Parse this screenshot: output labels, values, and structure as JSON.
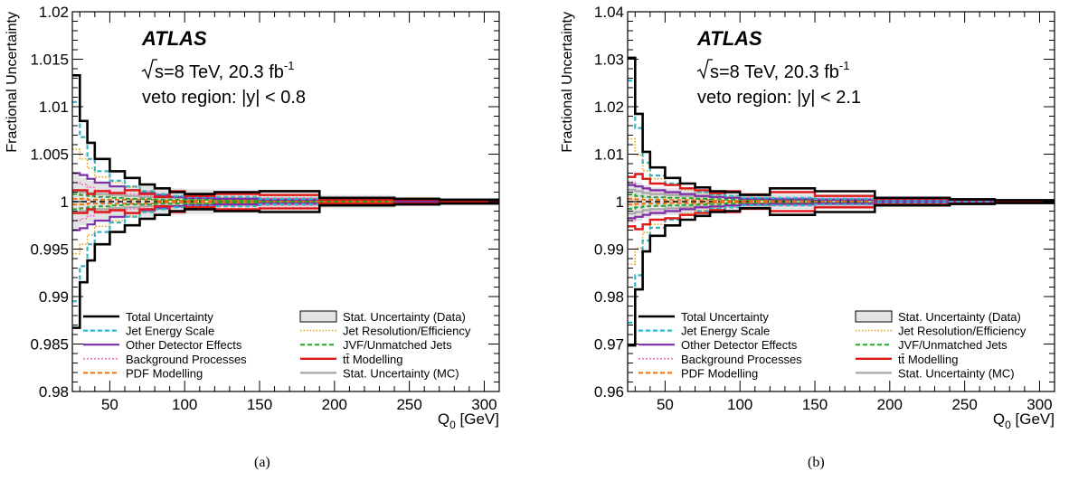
{
  "panels": [
    {
      "caption": "(a)",
      "title": "ATLAS",
      "energy_line_prefix": "s=8 TeV, 20.3 fb",
      "energy_line_sup": "-1",
      "veto_text": "veto region: |y| < 0.8",
      "ylabel": "Fractional Uncertainty",
      "xlabel_prefix": "Q",
      "xlabel_sub": "0",
      "xlabel_suffix": " [GeV]",
      "yticks": [
        "0.98",
        "0.985",
        "0.99",
        "0.995",
        "1",
        "1.005",
        "1.01",
        "1.015",
        "1.02"
      ],
      "xticks": [
        "50",
        "100",
        "150",
        "200",
        "250",
        "300"
      ]
    },
    {
      "caption": "(b)",
      "title": "ATLAS",
      "energy_line_prefix": "s=8 TeV, 20.3 fb",
      "energy_line_sup": "-1",
      "veto_text": "veto region: |y| < 2.1",
      "ylabel": "Fractional Uncertainty",
      "xlabel_prefix": "Q",
      "xlabel_sub": "0",
      "xlabel_suffix": " [GeV]",
      "yticks": [
        "0.96",
        "0.97",
        "0.98",
        "0.99",
        "1",
        "1.01",
        "1.02",
        "1.03",
        "1.04"
      ],
      "xticks": [
        "50",
        "100",
        "150",
        "200",
        "250",
        "300"
      ]
    }
  ],
  "legend": [
    {
      "label": "Total Uncertainty",
      "color": "#000000",
      "style": "solid"
    },
    {
      "label": "Stat. Uncertainty (Data)",
      "color": "#cccccc",
      "style": "box"
    },
    {
      "label": "Jet Energy Scale",
      "color": "#33b5c8",
      "style": "dash"
    },
    {
      "label": "Jet Resolution/Efficiency",
      "color": "#e0a020",
      "style": "dot"
    },
    {
      "label": "Other Detector Effects",
      "color": "#7b2fa8",
      "style": "solid"
    },
    {
      "label": "JVF/Unmatched Jets",
      "color": "#2e9e2e",
      "style": "dash"
    },
    {
      "label": "Background Processes",
      "color": "#f080c0",
      "style": "dot"
    },
    {
      "label": "tt̄ Modelling",
      "color": "#e01818",
      "style": "solid"
    },
    {
      "label": "PDF Modelling",
      "color": "#f07010",
      "style": "dash"
    },
    {
      "label": "Stat. Uncertainty (MC)",
      "color": "#a8a8a8",
      "style": "solid"
    }
  ],
  "chart_data": [
    {
      "type": "step",
      "xlabel": "Q0 [GeV]",
      "ylabel": "Fractional Uncertainty",
      "xlim": [
        25,
        310
      ],
      "ylim": [
        0.98,
        1.02
      ],
      "bin_edges": [
        25,
        30,
        35,
        40,
        50,
        60,
        70,
        80,
        90,
        100,
        120,
        150,
        190,
        240,
        270,
        310
      ],
      "series": [
        {
          "name": "Stat. Uncertainty (Data)",
          "up": [
            0.0028,
            0.0025,
            0.0022,
            0.002,
            0.0018,
            0.0017,
            0.0016,
            0.0015,
            0.0014,
            0.0013,
            0.0012,
            0.0011,
            0.0007,
            0.0005,
            0.0004
          ]
        },
        {
          "name": "Total Uncertainty",
          "up": [
            0.0133,
            0.0085,
            0.0062,
            0.0045,
            0.0032,
            0.0025,
            0.0018,
            0.0014,
            0.001,
            0.0008,
            0.001,
            0.0011,
            0.0004,
            0.0003,
            0.0002
          ]
        },
        {
          "name": "Jet Energy Scale",
          "up": [
            0.0105,
            0.0068,
            0.0045,
            0.0032,
            0.0022,
            0.0016,
            0.0011,
            0.0008,
            0.0006,
            0.0005,
            0.0005,
            0.0003,
            0.0002,
            0.0002,
            0.0001
          ]
        },
        {
          "name": "Jet Resolution/Efficiency",
          "up": [
            0.0055,
            0.0045,
            0.0035,
            0.0026,
            0.002,
            0.0015,
            0.0011,
            0.0008,
            0.0006,
            0.0005,
            0.0004,
            0.0003,
            0.0002,
            0.0001,
            0.0001
          ]
        },
        {
          "name": "Other Detector Effects",
          "up": [
            0.003,
            0.0028,
            0.0024,
            0.002,
            0.0016,
            0.0012,
            0.0009,
            0.0007,
            0.0005,
            0.0004,
            0.0003,
            0.0002,
            0.0002,
            0.0001,
            0.0001
          ]
        },
        {
          "name": "JVF/Unmatched Jets",
          "up": [
            0.0008,
            0.0007,
            0.0006,
            0.0005,
            0.0004,
            0.0003,
            0.0003,
            0.0002,
            0.0002,
            0.0002,
            0.0001,
            0.0001,
            0.0001,
            0.0001,
            0.0001
          ]
        },
        {
          "name": "Background Processes",
          "up": [
            0.002,
            0.0018,
            0.0015,
            0.0012,
            0.001,
            0.0008,
            0.0007,
            0.0006,
            0.0005,
            0.0005,
            0.0004,
            0.0004,
            0.0003,
            0.0002,
            0.0002
          ]
        },
        {
          "name": "tt̄ Modelling",
          "up": [
            0.0012,
            0.0012,
            0.0008,
            0.0011,
            0.0009,
            0.0012,
            0.0008,
            0.0005,
            0.0011,
            0.0006,
            0.0008,
            0.0007,
            0.0002,
            0.0002,
            0.0001
          ]
        },
        {
          "name": "PDF Modelling",
          "up": [
            0.0003,
            0.0003,
            0.0002,
            0.0002,
            0.0002,
            0.0002,
            0.0002,
            0.0001,
            0.0001,
            0.0001,
            0.0001,
            0.0001,
            0.0001,
            0.0001,
            0.0001
          ]
        },
        {
          "name": "Stat. Uncertainty (MC)",
          "up": [
            0.0012,
            0.001,
            0.0009,
            0.0008,
            0.0007,
            0.0006,
            0.0005,
            0.0004,
            0.0004,
            0.0003,
            0.0003,
            0.0003,
            0.0002,
            0.0002,
            0.0002
          ]
        }
      ]
    },
    {
      "type": "step",
      "xlabel": "Q0 [GeV]",
      "ylabel": "Fractional Uncertainty",
      "xlim": [
        25,
        310
      ],
      "ylim": [
        0.96,
        1.04
      ],
      "bin_edges": [
        25,
        30,
        35,
        40,
        50,
        60,
        70,
        80,
        90,
        100,
        120,
        150,
        190,
        240,
        270,
        310
      ],
      "series": [
        {
          "name": "Stat. Uncertainty (Data)",
          "up": [
            0.0045,
            0.004,
            0.0035,
            0.003,
            0.0028,
            0.0026,
            0.0024,
            0.0022,
            0.002,
            0.0018,
            0.0016,
            0.0015,
            0.001,
            0.0008,
            0.0005
          ]
        },
        {
          "name": "Total Uncertainty",
          "up": [
            0.0303,
            0.0185,
            0.0105,
            0.0072,
            0.005,
            0.0038,
            0.003,
            0.0022,
            0.002,
            0.0014,
            0.0028,
            0.0022,
            0.0008,
            0.0005,
            0.0003
          ]
        },
        {
          "name": "Jet Energy Scale",
          "up": [
            0.0255,
            0.0155,
            0.0082,
            0.0055,
            0.0038,
            0.0028,
            0.002,
            0.0015,
            0.0012,
            0.0008,
            0.0008,
            0.0006,
            0.0003,
            0.0002,
            0.0001
          ]
        },
        {
          "name": "Jet Resolution/Efficiency",
          "up": [
            0.0132,
            0.0098,
            0.0065,
            0.0048,
            0.0034,
            0.0025,
            0.0018,
            0.0014,
            0.0011,
            0.0008,
            0.0006,
            0.0004,
            0.0002,
            0.0002,
            0.0001
          ]
        },
        {
          "name": "Other Detector Effects",
          "up": [
            0.0035,
            0.0032,
            0.0028,
            0.0024,
            0.002,
            0.0016,
            0.0012,
            0.001,
            0.0008,
            0.0006,
            0.0005,
            0.0004,
            0.0002,
            0.0002,
            0.0001
          ]
        },
        {
          "name": "JVF/Unmatched Jets",
          "up": [
            0.0015,
            0.0012,
            0.001,
            0.0009,
            0.0008,
            0.0007,
            0.0006,
            0.0005,
            0.0004,
            0.0004,
            0.0003,
            0.0003,
            0.0002,
            0.0001,
            0.0001
          ]
        },
        {
          "name": "Background Processes",
          "up": [
            0.004,
            0.0032,
            0.0026,
            0.0022,
            0.0018,
            0.0015,
            0.0013,
            0.0011,
            0.001,
            0.0009,
            0.0008,
            0.0007,
            0.0004,
            0.0003,
            0.0002
          ]
        },
        {
          "name": "tt̄ Modelling",
          "up": [
            0.0052,
            0.0058,
            0.0048,
            0.0038,
            0.0035,
            0.0028,
            0.0024,
            0.0018,
            0.0022,
            0.0015,
            0.002,
            0.0012,
            0.0006,
            0.0004,
            0.0002
          ]
        },
        {
          "name": "PDF Modelling",
          "up": [
            0.0006,
            0.0005,
            0.0004,
            0.0004,
            0.0003,
            0.0003,
            0.0003,
            0.0002,
            0.0002,
            0.0002,
            0.0002,
            0.0001,
            0.0001,
            0.0001,
            0.0001
          ]
        },
        {
          "name": "Stat. Uncertainty (MC)",
          "up": [
            0.0025,
            0.0022,
            0.0018,
            0.0016,
            0.0014,
            0.0012,
            0.001,
            0.0009,
            0.0008,
            0.0007,
            0.0006,
            0.0005,
            0.0004,
            0.0003,
            0.0002
          ]
        }
      ]
    }
  ]
}
